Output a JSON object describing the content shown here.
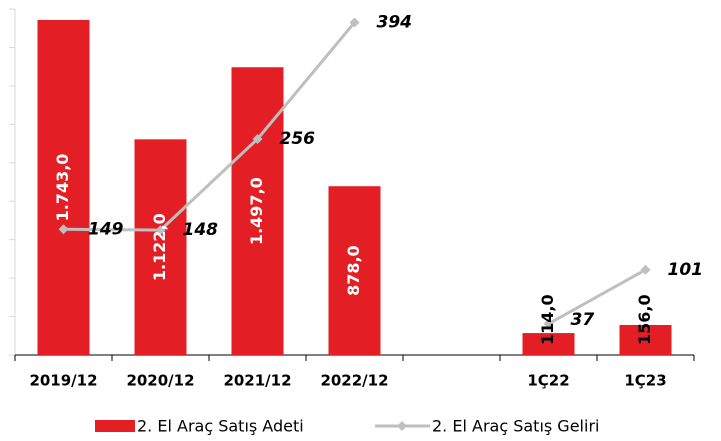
{
  "chart_data": {
    "type": "bar_line",
    "categories": [
      "2019/12",
      "2020/12",
      "2021/12",
      "2022/12",
      null,
      "1Ç22",
      "1Ç23"
    ],
    "series": [
      {
        "name": "2. El Araç Satış Adeti",
        "color": "#e31e24",
        "type": "bar",
        "values": [
          1743.0,
          1122.0,
          1497.0,
          878.0,
          null,
          114.0,
          156.0
        ],
        "value_labels": [
          "1.743,0",
          "1.122,0",
          "1.497,0",
          "878,0",
          null,
          "114,0",
          "156,0"
        ]
      },
      {
        "name": "2. El Araç Satış Geliri",
        "color": "#bfbfbf",
        "type": "line",
        "axis": "y2",
        "values": [
          149,
          148,
          256,
          394,
          null,
          37,
          101
        ]
      }
    ],
    "ylim": [
      0,
      1800
    ],
    "yticks": [
      0,
      200,
      400,
      600,
      800,
      1000,
      1200,
      1400,
      1600,
      1800
    ],
    "y2lim": [
      0,
      410
    ],
    "legend": "bottom"
  }
}
